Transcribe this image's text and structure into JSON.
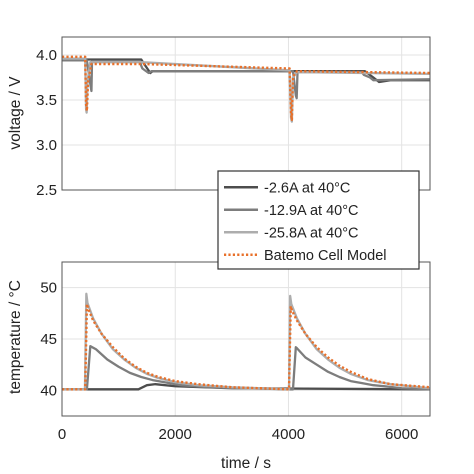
{
  "chart_data": [
    {
      "type": "line",
      "panel": "top",
      "ylabel": "voltage / V",
      "xlim": [
        0,
        6500
      ],
      "ylim": [
        2.5,
        4.2
      ],
      "yticks": [
        2.5,
        3.0,
        3.5,
        4.0
      ],
      "xticks": [
        0,
        2000,
        4000,
        6000
      ],
      "x_tick_labels_shown": false,
      "grid": true,
      "series": [
        {
          "name": "-2.6A at 40°C",
          "color": "#4d4d4d",
          "x": [
            0,
            1400,
            1430,
            1560,
            1600,
            4050,
            4080,
            5350,
            5500,
            5600,
            5800,
            6500
          ],
          "y": [
            3.95,
            3.95,
            3.92,
            3.8,
            3.82,
            3.82,
            3.82,
            3.82,
            3.75,
            3.7,
            3.72,
            3.72
          ]
        },
        {
          "name": "-12.9A at 40°C",
          "color": "#7d7d7d",
          "x": [
            0,
            440,
            500,
            520,
            530,
            1380,
            1400,
            1420,
            1530,
            1580,
            4080,
            4130,
            4145,
            4160,
            5300,
            5330,
            5440,
            5500,
            6500
          ],
          "y": [
            3.94,
            3.94,
            3.68,
            3.6,
            3.93,
            3.93,
            3.88,
            3.85,
            3.8,
            3.82,
            3.82,
            3.55,
            3.52,
            3.81,
            3.81,
            3.78,
            3.75,
            3.72,
            3.73
          ]
        },
        {
          "name": "-25.8A at 40°C",
          "color": "#adadad",
          "x": [
            0,
            410,
            425,
            435,
            450,
            500,
            1400,
            4020,
            4045,
            4060,
            4080,
            4150,
            5300,
            6500
          ],
          "y": [
            3.96,
            3.96,
            3.4,
            3.36,
            3.7,
            3.92,
            3.92,
            3.83,
            3.3,
            3.26,
            3.75,
            3.81,
            3.8,
            3.79
          ]
        },
        {
          "name": "Batemo Cell Model",
          "color": "#e8702a",
          "dash": true,
          "x": [
            0,
            410,
            425,
            440,
            460,
            520,
            1400,
            4020,
            4045,
            4060,
            4080,
            4150,
            6500
          ],
          "y": [
            3.98,
            3.98,
            3.45,
            3.38,
            3.7,
            3.9,
            3.9,
            3.85,
            3.35,
            3.28,
            3.76,
            3.82,
            3.8
          ]
        }
      ]
    },
    {
      "type": "line",
      "panel": "bottom",
      "xlabel": "time / s",
      "ylabel": "temperature / °C",
      "xlim": [
        0,
        6500
      ],
      "ylim": [
        37.5,
        52.5
      ],
      "yticks": [
        40,
        45,
        50
      ],
      "xticks": [
        0,
        2000,
        4000,
        6000
      ],
      "grid": true,
      "series": [
        {
          "name": "-2.6A at 40°C",
          "color": "#4d4d4d",
          "x": [
            0,
            1350,
            1500,
            1650,
            2000,
            3000,
            6500
          ],
          "y": [
            40.1,
            40.1,
            40.5,
            40.6,
            40.4,
            40.2,
            40.1
          ]
        },
        {
          "name": "-12.9A at 40°C",
          "color": "#7d7d7d",
          "x": [
            0,
            440,
            500,
            600,
            800,
            1000,
            1200,
            1400,
            1600,
            1800,
            2100,
            2600,
            3200,
            4040,
            4080,
            4130,
            4150,
            4300,
            4500,
            4700,
            4900,
            5100,
            5300,
            5500,
            5700,
            6000,
            6500
          ],
          "y": [
            40.1,
            40.1,
            44.3,
            44.0,
            43.0,
            42.3,
            41.7,
            41.3,
            41.0,
            40.8,
            40.5,
            40.3,
            40.2,
            40.1,
            40.1,
            44.2,
            44.1,
            43.2,
            42.5,
            41.8,
            41.3,
            40.9,
            40.7,
            40.5,
            40.4,
            40.2,
            40.1
          ]
        },
        {
          "name": "-25.8A at 40°C",
          "color": "#adadad",
          "x": [
            0,
            405,
            430,
            450,
            550,
            700,
            900,
            1100,
            1300,
            1500,
            1700,
            2000,
            2400,
            3000,
            4010,
            4030,
            4050,
            4150,
            4300,
            4500,
            4700,
            4900,
            5100,
            5400,
            5800,
            6500
          ],
          "y": [
            40.1,
            40.1,
            49.4,
            48.5,
            47.0,
            45.5,
            44.0,
            43.0,
            42.2,
            41.6,
            41.2,
            40.8,
            40.5,
            40.3,
            40.1,
            49.2,
            48.4,
            47.0,
            45.5,
            44.0,
            43.0,
            42.2,
            41.6,
            41.0,
            40.6,
            40.2
          ]
        },
        {
          "name": "Batemo Cell Model",
          "color": "#e8702a",
          "dash": true,
          "x": [
            0,
            410,
            440,
            460,
            550,
            700,
            900,
            1100,
            1300,
            1500,
            1700,
            2000,
            2400,
            3000,
            4010,
            4040,
            4060,
            4150,
            4300,
            4500,
            4700,
            4900,
            5100,
            5400,
            5800,
            6500
          ],
          "y": [
            40.1,
            40.1,
            48.4,
            48.0,
            46.8,
            45.5,
            44.2,
            43.1,
            42.3,
            41.7,
            41.3,
            40.9,
            40.6,
            40.3,
            40.1,
            48.2,
            47.8,
            46.8,
            45.5,
            44.2,
            43.2,
            42.4,
            41.8,
            41.1,
            40.6,
            40.3
          ]
        }
      ]
    }
  ],
  "legend": {
    "placement": "between-panels-right",
    "entries": [
      "-2.6A at 40°C",
      "-12.9A at 40°C",
      "-25.8A at 40°C",
      "Batemo Cell Model"
    ]
  }
}
